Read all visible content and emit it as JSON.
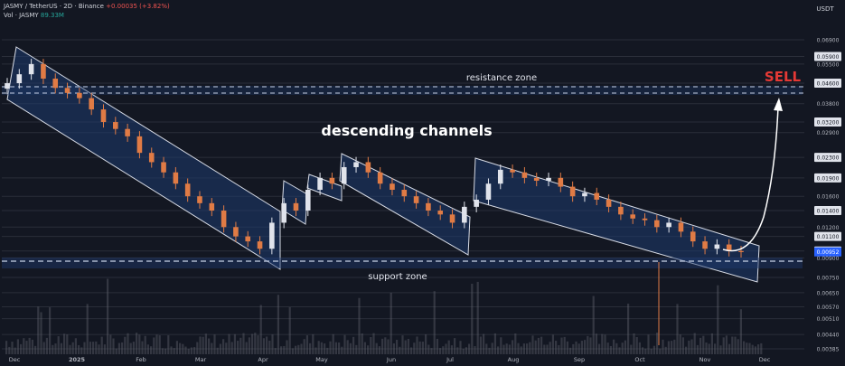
{
  "header": {
    "symbol_line": "JASMY / TetherUS · 2D · Binance",
    "change": "+0.00035 (+3.82%)",
    "volume_label": "Vol · JASMY",
    "volume_value": "89.33M"
  },
  "axis": {
    "currency": "USDT",
    "price_ticks": [
      "0.06900",
      "0.05900",
      "0.05500",
      "0.04600",
      "0.03800",
      "0.03200",
      "0.02900",
      "0.02300",
      "0.01900",
      "0.01600",
      "0.01400",
      "0.01200",
      "0.01100",
      "0.00960",
      "0.00952",
      "0.00900",
      "0.00750",
      "0.00650",
      "0.00570",
      "0.00510",
      "0.00440",
      "0.00385"
    ],
    "current_price": "0.00952",
    "months": [
      "Dec",
      "2025",
      "Feb",
      "Mar",
      "Apr",
      "May",
      "Jun",
      "Jul",
      "Aug",
      "Sep",
      "Oct",
      "Nov",
      "Dec"
    ]
  },
  "annotations": {
    "resistance": "resistance zone",
    "support": "support zone",
    "channels": "descending channels",
    "signal": "SELL"
  },
  "colors": {
    "background": "#131722",
    "up": "#e0e3eb",
    "down": "#e07b45",
    "channel_fill": "#1e3a6e",
    "signal": "#e53935",
    "price_tag": "#2962ff"
  },
  "chart_data": {
    "type": "candlestick",
    "symbol": "JASMY/USDT",
    "timeframe": "2D",
    "exchange": "Binance",
    "y_scale": "log",
    "ylim": [
      0.00385,
      0.069
    ],
    "x": [
      "Dec",
      "2025",
      "Feb",
      "Mar",
      "Apr",
      "May",
      "Jun",
      "Jul",
      "Aug",
      "Sep",
      "Oct",
      "Nov",
      "Dec"
    ],
    "close_series": [
      0.046,
      0.05,
      0.055,
      0.048,
      0.044,
      0.042,
      0.04,
      0.036,
      0.032,
      0.03,
      0.028,
      0.024,
      0.022,
      0.02,
      0.018,
      0.016,
      0.015,
      0.014,
      0.012,
      0.011,
      0.0105,
      0.0098,
      0.0125,
      0.015,
      0.014,
      0.017,
      0.019,
      0.018,
      0.021,
      0.022,
      0.02,
      0.018,
      0.017,
      0.016,
      0.015,
      0.014,
      0.0135,
      0.0125,
      0.0145,
      0.0155,
      0.018,
      0.0205,
      0.02,
      0.019,
      0.0185,
      0.019,
      0.0175,
      0.016,
      0.0165,
      0.0155,
      0.0145,
      0.0135,
      0.013,
      0.0128,
      0.012,
      0.0125,
      0.0115,
      0.0105,
      0.0098,
      0.0102,
      0.0096,
      0.0095
    ],
    "zones": {
      "resistance_zone": [
        0.038,
        0.046
      ],
      "support_zone": [
        0.0088,
        0.0092
      ]
    },
    "current_price": 0.00952
  }
}
